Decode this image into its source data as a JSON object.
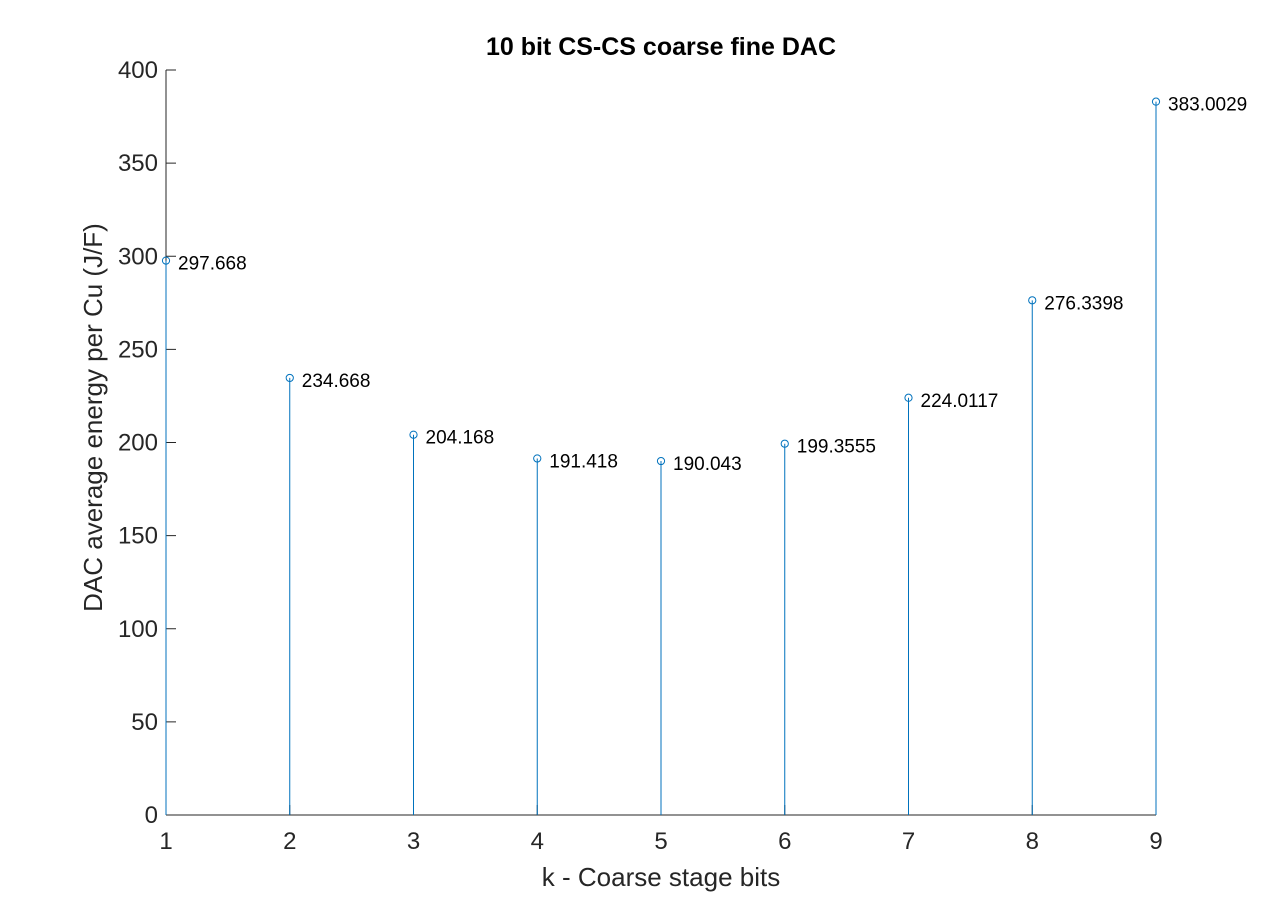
{
  "chart_data": {
    "type": "stem",
    "title": "10 bit CS-CS coarse fine DAC",
    "xlabel": "k - Coarse stage bits",
    "ylabel": "DAC average energy per Cu (J/F)",
    "x": [
      1,
      2,
      3,
      4,
      5,
      6,
      7,
      8,
      9
    ],
    "values": [
      297.668,
      234.668,
      204.168,
      191.418,
      190.043,
      199.3555,
      224.0117,
      276.3398,
      383.0029
    ],
    "data_labels": [
      "297.668",
      "234.668",
      "204.168",
      "191.418",
      "190.043",
      "199.3555",
      "224.0117",
      "276.3398",
      "383.0029"
    ],
    "xlim": [
      1,
      9
    ],
    "ylim": [
      0,
      400
    ],
    "xticks": [
      "1",
      "2",
      "3",
      "4",
      "5",
      "6",
      "7",
      "8",
      "9"
    ],
    "yticks": [
      "0",
      "50",
      "100",
      "150",
      "200",
      "250",
      "300",
      "350",
      "400"
    ],
    "grid": false,
    "box": false,
    "series_color": "#0072BD",
    "axis_color": "#262626"
  }
}
